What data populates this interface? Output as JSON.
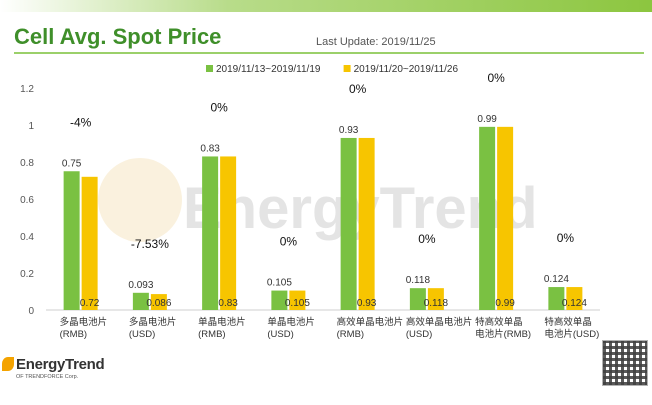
{
  "header": {
    "title": "Cell Avg. Spot Price",
    "update": "Last Update: 2019/11/25"
  },
  "watermark": {
    "text": "EnergyTrend"
  },
  "footer": {
    "logo_name": "EnergyTrend",
    "logo_sub": "OF TRENDFORCE Corp."
  },
  "colors": {
    "series1": "#7ac142",
    "series2": "#f7c500",
    "accent": "#3f8f2a"
  },
  "chart_data": {
    "type": "bar",
    "title": "Cell Avg. Spot Price",
    "xlabel": "",
    "ylabel": "",
    "ylim": [
      0,
      1.2
    ],
    "yticks": [
      "0",
      "0.2",
      "0.4",
      "0.6",
      "0.8",
      "1",
      "1.2"
    ],
    "legend_position": "top-center",
    "categories": [
      [
        "多晶电池片",
        "(RMB)"
      ],
      [
        "多晶电池片",
        "(USD)"
      ],
      [
        "单晶电池片",
        "(RMB)"
      ],
      [
        "单晶电池片",
        "(USD)"
      ],
      [
        "高效单晶电池片",
        "(RMB)"
      ],
      [
        "高效单晶电池片",
        "(USD)"
      ],
      [
        "特高效单晶",
        "电池片(RMB)"
      ],
      [
        "特高效单晶",
        "电池片(USD)"
      ]
    ],
    "series": [
      {
        "name": "2019/11/13~2019/11/19",
        "values": [
          0.75,
          0.093,
          0.83,
          0.105,
          0.93,
          0.118,
          0.99,
          0.124
        ],
        "labels": [
          "0.75",
          "0.093",
          "0.83",
          "0.105",
          "0.93",
          "0.118",
          "0.99",
          "0.124"
        ]
      },
      {
        "name": "2019/11/20~2019/11/26",
        "values": [
          0.72,
          0.086,
          0.83,
          0.105,
          0.93,
          0.118,
          0.99,
          0.124
        ],
        "labels": [
          "0.72",
          "0.086",
          "0.83",
          "0.105",
          "0.93",
          "0.118",
          "0.99",
          "0.124"
        ]
      }
    ],
    "changes": [
      "-4%",
      "-7.53%",
      "0%",
      "0%",
      "0%",
      "0%",
      "0%",
      "0%"
    ]
  }
}
